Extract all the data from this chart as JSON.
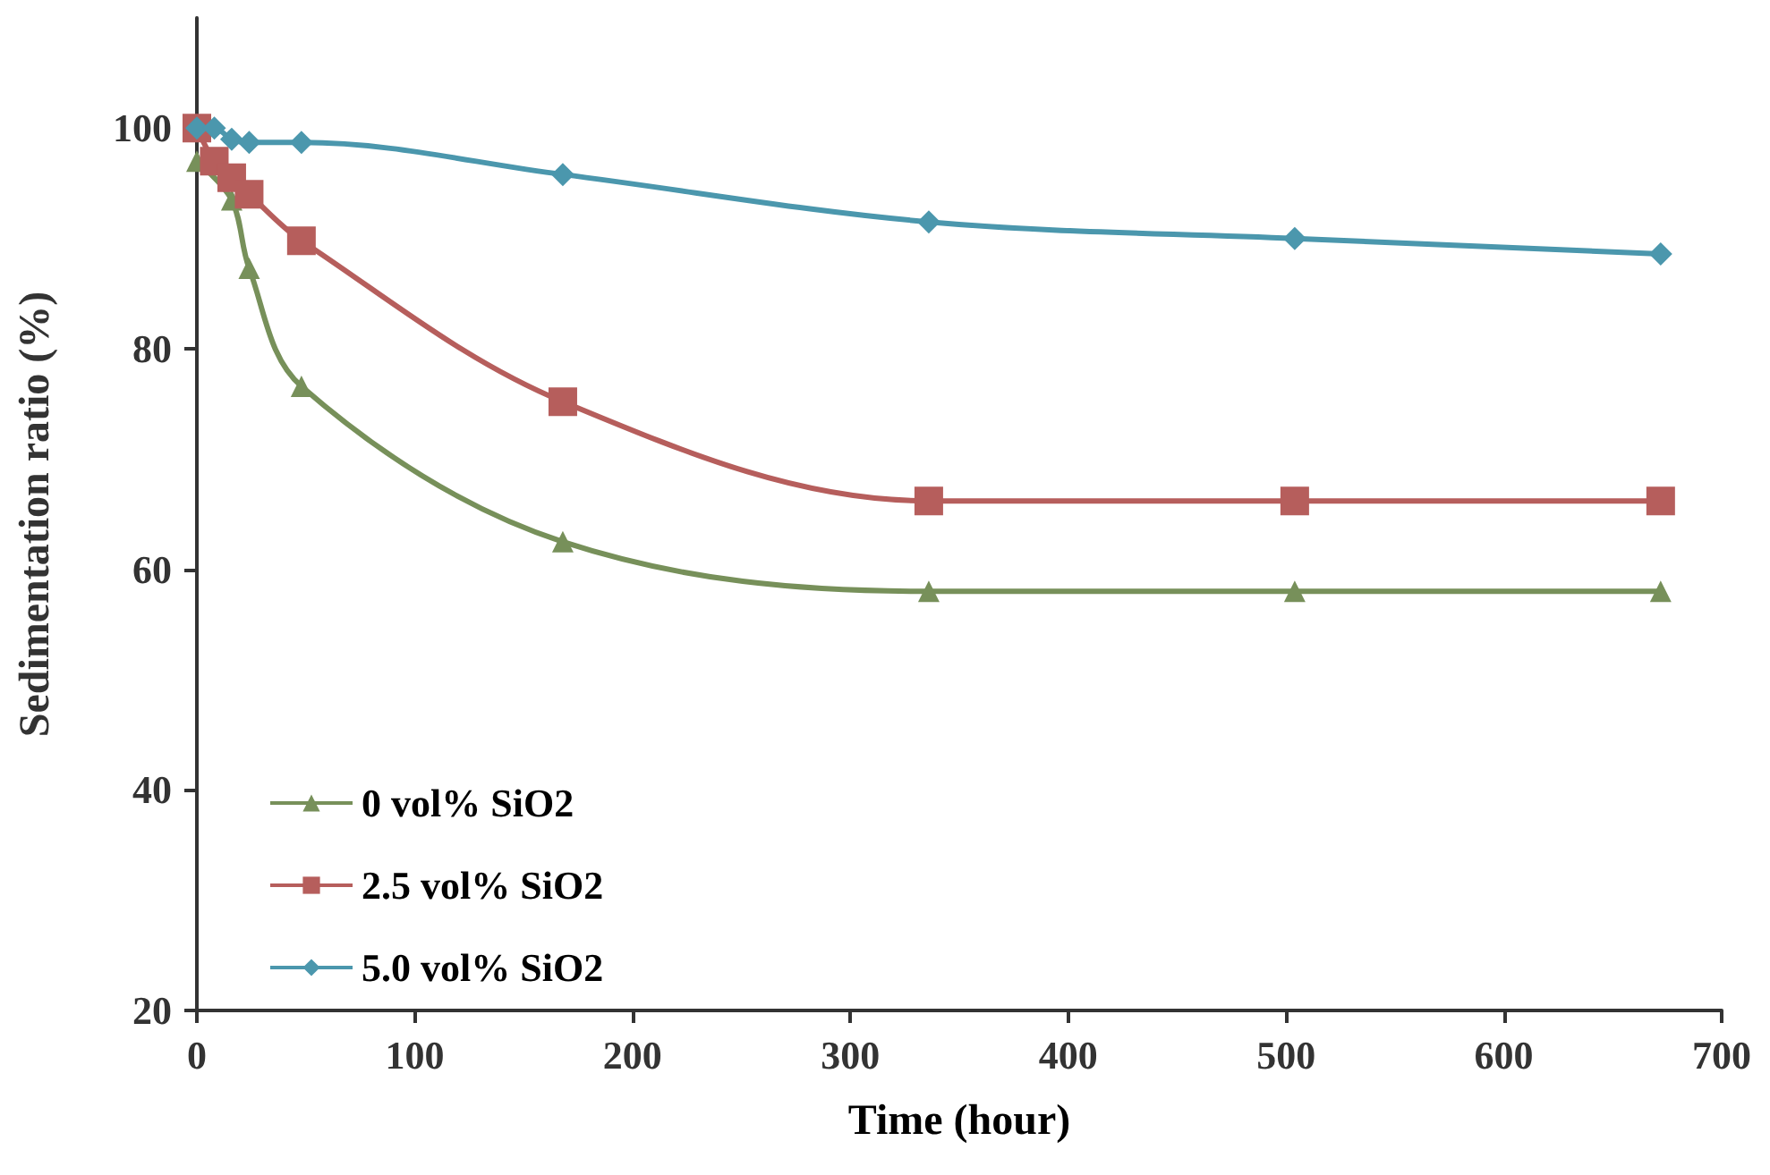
{
  "chart_data": {
    "type": "line",
    "xlabel": "Time (hour)",
    "ylabel": "Sedimentation ratio (%)",
    "xlim": [
      0,
      700
    ],
    "xticks": [
      0,
      100,
      200,
      300,
      400,
      500,
      600,
      700
    ],
    "ylim": [
      20,
      110
    ],
    "yticks": [
      20,
      40,
      60,
      80,
      100
    ],
    "grid": false,
    "legend": "bottom left",
    "line_style": "solid",
    "series": [
      {
        "name": "0 vol% SiO2",
        "color": "#77905a",
        "marker": "triangle",
        "x": [
          0,
          16,
          24,
          48,
          168,
          336,
          504,
          672
        ],
        "values": [
          97,
          93.5,
          87.3,
          76.6,
          62.5,
          58,
          58,
          58
        ]
      },
      {
        "name": "2.5 vol% SiO2",
        "color": "#b65e5c",
        "marker": "square",
        "x": [
          0,
          8,
          16,
          24,
          48,
          168,
          336,
          504,
          672
        ],
        "values": [
          100,
          97,
          95.5,
          94,
          89.8,
          75.2,
          66.2,
          66.2,
          66.2
        ]
      },
      {
        "name": "5.0 vol% SiO2",
        "color": "#4b97ad",
        "marker": "diamond",
        "x": [
          0,
          8,
          16,
          24,
          48,
          168,
          336,
          504,
          672
        ],
        "values": [
          100,
          100,
          99,
          98.7,
          98.7,
          95.8,
          91.5,
          90,
          88.6
        ]
      }
    ]
  }
}
